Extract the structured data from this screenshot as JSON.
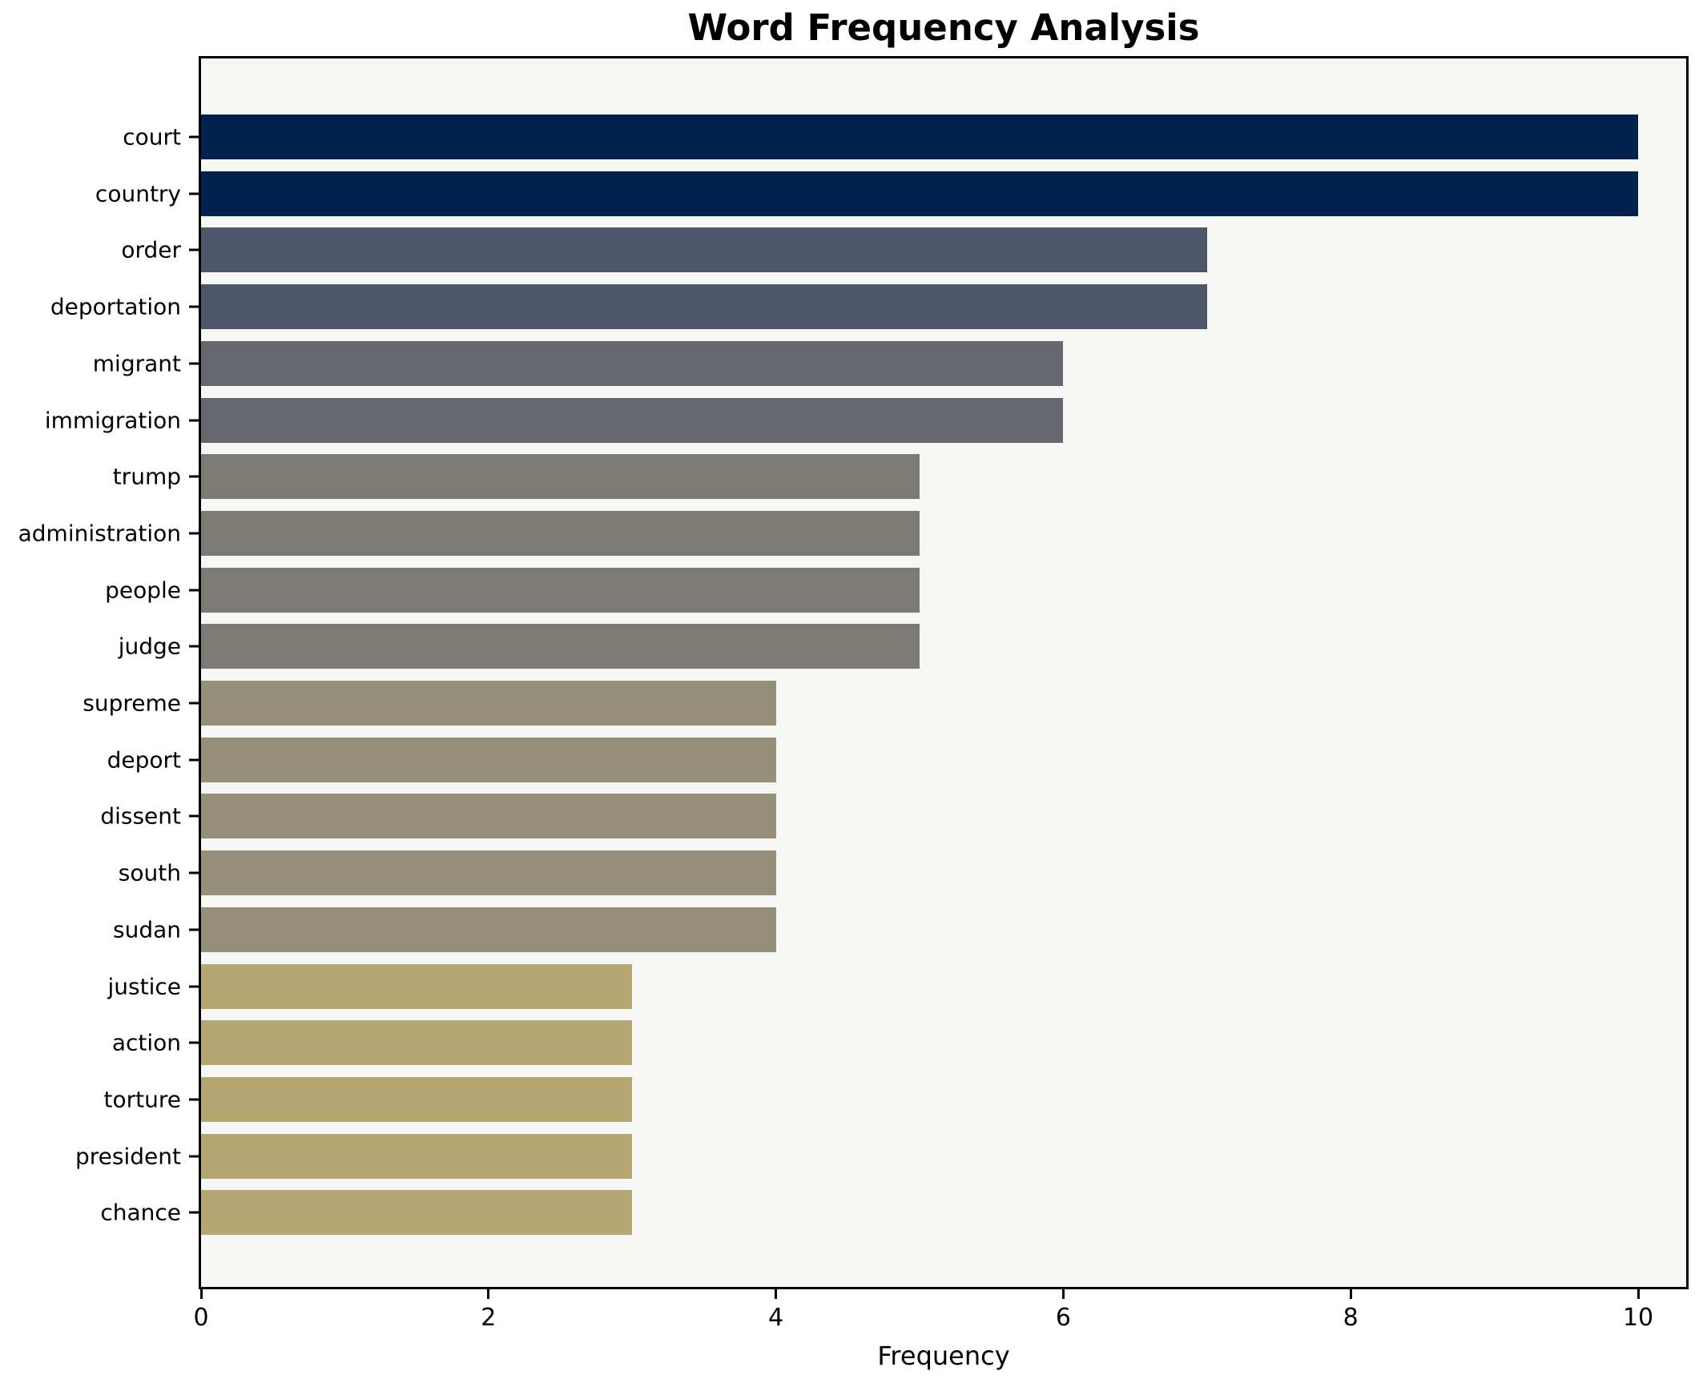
{
  "chart_data": {
    "type": "bar",
    "orientation": "horizontal",
    "title": "Word Frequency Analysis",
    "xlabel": "Frequency",
    "ylabel": "",
    "categories": [
      "court",
      "country",
      "order",
      "deportation",
      "migrant",
      "immigration",
      "trump",
      "administration",
      "people",
      "judge",
      "supreme",
      "deport",
      "dissent",
      "south",
      "sudan",
      "justice",
      "action",
      "torture",
      "president",
      "chance"
    ],
    "values": [
      10,
      10,
      7,
      7,
      6,
      6,
      5,
      5,
      5,
      5,
      4,
      4,
      4,
      4,
      4,
      3,
      3,
      3,
      3,
      3
    ],
    "colors": [
      "#00224e",
      "#00224e",
      "#4d566b",
      "#4d566b",
      "#65666e",
      "#65666e",
      "#7b7a74",
      "#7b7a74",
      "#7b7a74",
      "#7b7a74",
      "#958e78",
      "#958e78",
      "#958e78",
      "#958e78",
      "#958e78",
      "#b5a771",
      "#b5a771",
      "#b5a771",
      "#b5a771",
      "#b5a771"
    ],
    "value_color_map": {
      "10": "#00224e",
      "7": "#4d566b",
      "6": "#65666e",
      "5": "#7b7a74",
      "4": "#958e78",
      "3": "#b5a771"
    },
    "x_ticks": [
      0,
      2,
      4,
      6,
      8,
      10
    ],
    "xlim": [
      0,
      10.37
    ],
    "grid": false,
    "legend": null,
    "plot_background": "#f6f6f5",
    "figure_background": "#ffffff",
    "spine_color": "#000000",
    "text_color": "#000000"
  }
}
